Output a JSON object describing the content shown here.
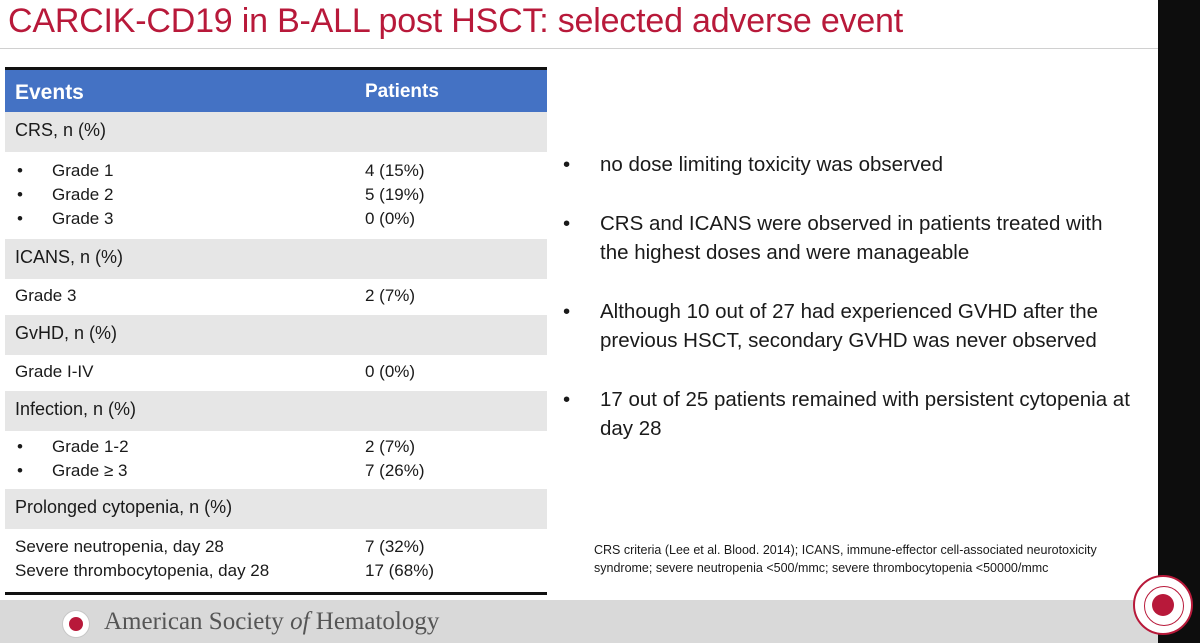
{
  "title": "CARCIK-CD19 in B-ALL post HSCT: selected adverse event",
  "table": {
    "header": [
      "Events",
      "Patients"
    ],
    "sections": [
      {
        "label": "CRS, n (%)",
        "rows": [
          {
            "bullet": "•",
            "label": "Grade 1",
            "value": "4 (15%)"
          },
          {
            "bullet": "•",
            "label": "Grade 2",
            "value": "5 (19%)"
          },
          {
            "bullet": "•",
            "label": "Grade 3",
            "value": "0 (0%)"
          }
        ]
      },
      {
        "label": "ICANS, n (%)",
        "rows": [
          {
            "label": "Grade 3",
            "value": "2 (7%)"
          }
        ]
      },
      {
        "label": "GvHD, n (%)",
        "rows": [
          {
            "label": "Grade I-IV",
            "value": "0 (0%)"
          }
        ]
      },
      {
        "label": "Infection, n (%)",
        "rows": [
          {
            "bullet": "•",
            "label": "Grade 1-2",
            "value": "2 (7%)"
          },
          {
            "bullet": "•",
            "label": "Grade ≥ 3",
            "value": "7 (26%)"
          }
        ]
      },
      {
        "label": "Prolonged cytopenia, n (%)",
        "rows": [
          {
            "label": "Severe neutropenia, day 28",
            "value": "7 (32%)"
          },
          {
            "label": "Severe thrombocytopenia, day 28",
            "value": "17 (68%)"
          }
        ]
      }
    ]
  },
  "bullets": [
    "no dose limiting toxicity was observed",
    "CRS and ICANS were observed  in patients treated with the highest doses and were manageable",
    "Although 10 out of 27 had experienced GVHD after the previous HSCT, secondary GVHD was never observed",
    "17 out of 25 patients remained with persistent cytopenia at day 28"
  ],
  "bullet_char": "•",
  "footnote": "CRS criteria (Lee et al. Blood. 2014); ICANS, immune-effector cell-associated  neurotoxicity syndrome; severe neutropenia <500/mmc; severe thrombocytopenia <50000/mmc",
  "footer": {
    "org_pre": "American Society ",
    "org_of": "of",
    "org_post": " Hematology"
  },
  "colors": {
    "title": "#b8193a",
    "table_header": "#4472c4",
    "section_bg": "#e6e6e6",
    "footer_bg": "#d9d9d9"
  },
  "icons": [
    "ash-logo-icon",
    "ash-seal-icon"
  ]
}
